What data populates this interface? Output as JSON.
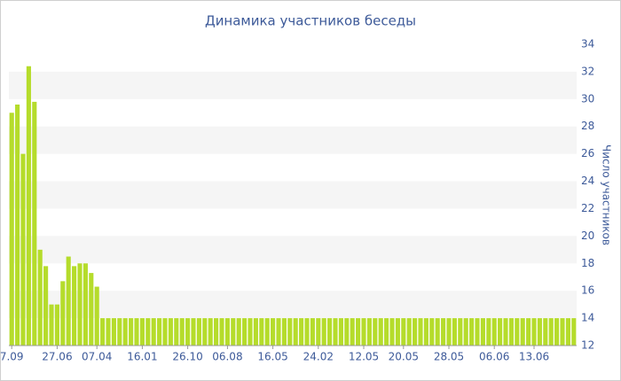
{
  "chart_data": {
    "type": "bar",
    "title": "Динамика участников беседы",
    "y_label": "Число участников",
    "categories": [
      "7.09",
      null,
      null,
      null,
      null,
      null,
      null,
      null,
      "27.06",
      null,
      null,
      null,
      null,
      null,
      null,
      "07.04",
      null,
      null,
      null,
      null,
      null,
      null,
      null,
      "16.01",
      null,
      null,
      null,
      null,
      null,
      null,
      null,
      "26.10",
      null,
      null,
      null,
      null,
      null,
      null,
      "06.08",
      null,
      null,
      null,
      null,
      null,
      null,
      null,
      "16.05",
      null,
      null,
      null,
      null,
      null,
      null,
      null,
      "24.02",
      null,
      null,
      null,
      null,
      null,
      null,
      null,
      "12.05",
      null,
      null,
      null,
      null,
      null,
      null,
      "20.05",
      null,
      null,
      null,
      null,
      null,
      null,
      null,
      "28.05",
      null,
      null,
      null,
      null,
      null,
      null,
      null,
      "06.06",
      null,
      null,
      null,
      null,
      null,
      null,
      "13.06",
      null,
      null,
      null,
      null,
      null,
      null,
      null
    ],
    "values": [
      29,
      29.6,
      26,
      32.4,
      29.8,
      19,
      17.8,
      15,
      15,
      16.7,
      18.5,
      17.8,
      18,
      18,
      17.3,
      16.3,
      14,
      14,
      14,
      14,
      14,
      14,
      14,
      14,
      14,
      14,
      14,
      14,
      14,
      14,
      14,
      14,
      14,
      14,
      14,
      14,
      14,
      14,
      14,
      14,
      14,
      14,
      14,
      14,
      14,
      14,
      14,
      14,
      14,
      14,
      14,
      14,
      14,
      14,
      14,
      14,
      14,
      14,
      14,
      14,
      14,
      14,
      14,
      14,
      14,
      14,
      14,
      14,
      14,
      14,
      14,
      14,
      14,
      14,
      14,
      14,
      14,
      14,
      14,
      14,
      14,
      14,
      14,
      14,
      14,
      14,
      14,
      14,
      14,
      14,
      14,
      14,
      14,
      14,
      14,
      14,
      14,
      14,
      14,
      14
    ],
    "color": "#b5dc2b",
    "band_color": "#f5f5f5",
    "ylim": [
      12,
      34
    ],
    "yticks": [
      12,
      14,
      16,
      18,
      20,
      22,
      24,
      26,
      28,
      30,
      32,
      34
    ],
    "y_axis_side": "right",
    "grid": true
  }
}
